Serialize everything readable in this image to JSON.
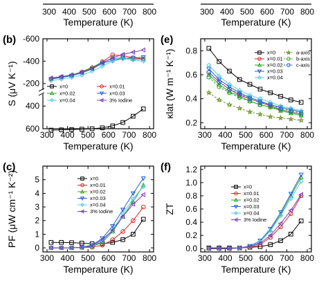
{
  "top_strip": {
    "xticks": [
      "300",
      "400",
      "500",
      "600",
      "700",
      "800",
      "300",
      "400",
      "500",
      "600",
      "700",
      "800"
    ],
    "xlabel_left": "Temperature (K)",
    "xlabel_right": "Temperature (K)"
  },
  "chart_data": [
    {
      "panel": "(b)",
      "type": "line",
      "ylabel": "S (μV K⁻¹)",
      "xlabel": "Temperature (K)",
      "xlim": [
        280,
        820
      ],
      "broken_axis": true,
      "ylim_upper": [
        -600,
        -150
      ],
      "yticks_upper": [
        "-600",
        "-400",
        "-200"
      ],
      "ylim_lower": [
        600,
        300
      ],
      "yticks_lower": [
        "400",
        "600"
      ],
      "xticks": [
        "300",
        "400",
        "500",
        "600",
        "700",
        "800"
      ],
      "legend_position": "middle",
      "series": [
        {
          "name": "x=0",
          "color": "#000000",
          "marker": "square",
          "segment": "lower",
          "x": [
            320,
            370,
            420,
            470,
            520,
            570,
            620,
            670,
            720,
            770
          ],
          "y": [
            612,
            610,
            607,
            604,
            600,
            592,
            575,
            545,
            490,
            425
          ]
        },
        {
          "name": "x=0.01",
          "color": "#d62728",
          "marker": "circle",
          "segment": "upper",
          "x": [
            320,
            370,
            420,
            470,
            520,
            570,
            620,
            670,
            720,
            770
          ],
          "y": [
            -240,
            -255,
            -270,
            -300,
            -340,
            -395,
            -455,
            -450,
            -430,
            -420
          ]
        },
        {
          "name": "x=0.02",
          "color": "#2ca02c",
          "marker": "triangle-up",
          "segment": "upper",
          "x": [
            320,
            370,
            420,
            470,
            520,
            570,
            620,
            670,
            720,
            770
          ],
          "y": [
            -245,
            -260,
            -275,
            -305,
            -345,
            -390,
            -425,
            -430,
            -420,
            -415
          ]
        },
        {
          "name": "x=0.03",
          "color": "#1f5fd6",
          "marker": "triangle-down",
          "segment": "upper",
          "x": [
            320,
            370,
            420,
            470,
            520,
            570,
            620,
            670,
            720,
            770
          ],
          "y": [
            -240,
            -255,
            -270,
            -295,
            -330,
            -380,
            -410,
            -425,
            -430,
            -435
          ]
        },
        {
          "name": "x=0.04",
          "color": "#56c8e0",
          "marker": "diamond",
          "segment": "upper",
          "x": [
            320,
            370,
            420,
            470,
            520,
            570,
            620,
            670,
            720,
            770
          ],
          "y": [
            -225,
            -240,
            -255,
            -275,
            -310,
            -355,
            -400,
            -420,
            -410,
            -400
          ]
        },
        {
          "name": "3% Iodine",
          "color": "#7b3fb3",
          "marker": "triangle-left",
          "segment": "upper",
          "x": [
            320,
            370,
            420,
            470,
            520,
            570,
            620,
            670,
            720,
            770
          ],
          "y": [
            -250,
            -262,
            -278,
            -300,
            -335,
            -385,
            -430,
            -460,
            -480,
            -500
          ]
        }
      ]
    },
    {
      "panel": "(e)",
      "type": "line",
      "ylabel": "κlat (W m⁻¹ K⁻¹)",
      "xlabel": "Temperature (K)",
      "xlim": [
        280,
        820
      ],
      "ylim": [
        0.15,
        0.9
      ],
      "yticks": [
        "0.2",
        "0.4",
        "0.6",
        "0.8"
      ],
      "xticks": [
        "300",
        "400",
        "500",
        "600",
        "700",
        "800"
      ],
      "legend_position": "top-right",
      "series": [
        {
          "name": "x=0",
          "color": "#000000",
          "marker": "square",
          "x": [
            320,
            370,
            420,
            470,
            520,
            570,
            620,
            670,
            720,
            770
          ],
          "y": [
            0.82,
            0.71,
            0.63,
            0.56,
            0.52,
            0.48,
            0.45,
            0.42,
            0.39,
            0.37
          ]
        },
        {
          "name": "x=0.01",
          "color": "#d62728",
          "marker": "circle",
          "x": [
            320,
            370,
            420,
            470,
            520,
            570,
            620,
            670,
            720,
            770
          ],
          "y": [
            0.62,
            0.54,
            0.48,
            0.43,
            0.4,
            0.37,
            0.34,
            0.31,
            0.29,
            0.27
          ]
        },
        {
          "name": "x=0.02",
          "color": "#2ca02c",
          "marker": "triangle-up",
          "x": [
            320,
            370,
            420,
            470,
            520,
            570,
            620,
            670,
            720,
            770
          ],
          "y": [
            0.6,
            0.52,
            0.46,
            0.42,
            0.38,
            0.35,
            0.33,
            0.3,
            0.28,
            0.26
          ]
        },
        {
          "name": "x=0.03",
          "color": "#1f5fd6",
          "marker": "triangle-down",
          "x": [
            320,
            370,
            420,
            470,
            520,
            570,
            620,
            670,
            720,
            770
          ],
          "y": [
            0.65,
            0.56,
            0.5,
            0.45,
            0.41,
            0.38,
            0.35,
            0.33,
            0.31,
            0.29
          ]
        },
        {
          "name": "x=0.04",
          "color": "#56c8e0",
          "marker": "diamond",
          "x": [
            320,
            370,
            420,
            470,
            520,
            570,
            620,
            670,
            720,
            770
          ],
          "y": [
            0.68,
            0.59,
            0.52,
            0.47,
            0.43,
            0.4,
            0.37,
            0.34,
            0.32,
            0.3
          ]
        },
        {
          "name": "a-axis",
          "color": "#6b8e23",
          "marker": "star",
          "dashed": true,
          "x": [
            320,
            370,
            420,
            470,
            520,
            570,
            620,
            670,
            720,
            770
          ],
          "y": [
            0.45,
            0.39,
            0.35,
            0.32,
            0.29,
            0.27,
            0.25,
            0.24,
            0.23,
            0.22
          ]
        },
        {
          "name": "b-axis",
          "color": "#2ca02c",
          "marker": "circle",
          "dashed": true,
          "x": [
            320,
            370,
            420,
            470,
            520,
            570,
            620,
            670,
            720,
            770
          ],
          "y": [
            0.58,
            0.5,
            0.45,
            0.41,
            0.38,
            0.35,
            0.33,
            0.31,
            0.29,
            0.27
          ]
        },
        {
          "name": "c-axis",
          "color": "#1f5fd6",
          "marker": "circle",
          "dashed": true,
          "x": [
            320,
            370,
            420,
            470,
            520,
            570,
            620,
            670,
            720,
            770
          ],
          "y": [
            0.62,
            0.54,
            0.48,
            0.44,
            0.4,
            0.37,
            0.35,
            0.32,
            0.3,
            0.28
          ]
        }
      ]
    },
    {
      "panel": "(c)",
      "type": "line",
      "ylabel": "PF (μW cm⁻¹ K⁻²)",
      "xlabel": "Temperature (K)",
      "xlim": [
        280,
        820
      ],
      "ylim": [
        -0.3,
        6
      ],
      "yticks": [
        "0",
        "1",
        "2",
        "3",
        "4",
        "5"
      ],
      "xticks": [
        "300",
        "400",
        "500",
        "600",
        "700",
        "800"
      ],
      "legend_position": "top-left",
      "series": [
        {
          "name": "x=0",
          "color": "#000000",
          "marker": "square",
          "x": [
            320,
            370,
            420,
            470,
            520,
            570,
            620,
            670,
            720,
            770
          ],
          "y": [
            0.4,
            0.4,
            0.38,
            0.35,
            0.3,
            0.3,
            0.4,
            0.6,
            1.0,
            2.1
          ]
        },
        {
          "name": "x=0.01",
          "color": "#d62728",
          "marker": "circle",
          "x": [
            320,
            370,
            420,
            470,
            520,
            570,
            620,
            670,
            720,
            770
          ],
          "y": [
            0.0,
            0.0,
            0.0,
            0.02,
            0.05,
            0.2,
            0.6,
            1.2,
            2.0,
            3.0
          ]
        },
        {
          "name": "x=0.02",
          "color": "#2ca02c",
          "marker": "triangle-up",
          "x": [
            320,
            370,
            420,
            470,
            520,
            570,
            620,
            670,
            720,
            770
          ],
          "y": [
            0.0,
            0.0,
            0.0,
            0.03,
            0.1,
            0.4,
            1.2,
            2.3,
            3.4,
            4.6
          ]
        },
        {
          "name": "x=0.03",
          "color": "#1f5fd6",
          "marker": "triangle-down",
          "x": [
            320,
            370,
            420,
            470,
            520,
            570,
            620,
            670,
            720,
            770
          ],
          "y": [
            0.0,
            0.0,
            0.0,
            0.05,
            0.2,
            0.7,
            1.6,
            2.8,
            4.0,
            5.1
          ]
        },
        {
          "name": "x=0.04",
          "color": "#56c8e0",
          "marker": "diamond",
          "x": [
            320,
            370,
            420,
            470,
            520,
            570,
            620,
            670,
            720,
            770
          ],
          "y": [
            0.0,
            0.0,
            0.0,
            0.03,
            0.15,
            0.5,
            1.3,
            2.5,
            3.6,
            4.5
          ]
        },
        {
          "name": "3% Iodine",
          "color": "#7b3fb3",
          "marker": "triangle-left",
          "x": [
            320,
            370,
            420,
            470,
            520,
            570,
            620,
            670,
            720,
            770
          ],
          "y": [
            0.0,
            0.0,
            0.0,
            0.04,
            0.15,
            0.6,
            1.3,
            2.3,
            3.2,
            3.9
          ]
        }
      ]
    },
    {
      "panel": "(f)",
      "type": "line",
      "ylabel": "ZT",
      "xlabel": "Temperature (K)",
      "xlim": [
        280,
        820
      ],
      "ylim": [
        -0.05,
        1.25
      ],
      "yticks": [
        "0.0",
        "0.2",
        "0.4",
        "0.6",
        "0.8",
        "1.0",
        "1.2"
      ],
      "xticks": [
        "300",
        "400",
        "500",
        "600",
        "700",
        "800"
      ],
      "legend_position": "top-left",
      "series": [
        {
          "name": "x=0",
          "color": "#000000",
          "marker": "square",
          "x": [
            320,
            370,
            420,
            470,
            520,
            570,
            620,
            670,
            720,
            770
          ],
          "y": [
            0.01,
            0.01,
            0.01,
            0.01,
            0.02,
            0.03,
            0.06,
            0.12,
            0.22,
            0.42
          ]
        },
        {
          "name": "x=0.01",
          "color": "#d62728",
          "marker": "circle",
          "x": [
            320,
            370,
            420,
            470,
            520,
            570,
            620,
            670,
            720,
            770
          ],
          "y": [
            0.0,
            0.0,
            0.0,
            0.01,
            0.02,
            0.06,
            0.17,
            0.33,
            0.53,
            0.8
          ]
        },
        {
          "name": "x=0.02",
          "color": "#2ca02c",
          "marker": "triangle-up",
          "x": [
            320,
            370,
            420,
            470,
            520,
            570,
            620,
            670,
            720,
            770
          ],
          "y": [
            0.0,
            0.0,
            0.0,
            0.01,
            0.03,
            0.1,
            0.28,
            0.52,
            0.8,
            1.08
          ]
        },
        {
          "name": "x=0.03",
          "color": "#1f5fd6",
          "marker": "triangle-down",
          "x": [
            320,
            370,
            420,
            470,
            520,
            570,
            620,
            670,
            720,
            770
          ],
          "y": [
            0.0,
            0.0,
            0.0,
            0.01,
            0.04,
            0.12,
            0.3,
            0.55,
            0.83,
            1.12
          ]
        },
        {
          "name": "x=0.04",
          "color": "#56c8e0",
          "marker": "diamond",
          "x": [
            320,
            370,
            420,
            470,
            520,
            570,
            620,
            670,
            720,
            770
          ],
          "y": [
            0.0,
            0.0,
            0.0,
            0.01,
            0.03,
            0.1,
            0.27,
            0.5,
            0.76,
            1.02
          ]
        },
        {
          "name": "3% Iodine",
          "color": "#7b3fb3",
          "marker": "triangle-left",
          "x": [
            320,
            370,
            420,
            470,
            520,
            570,
            620,
            670,
            720,
            770
          ],
          "y": [
            0.0,
            0.0,
            0.0,
            0.01,
            0.03,
            0.08,
            0.2,
            0.38,
            0.58,
            0.82
          ]
        }
      ]
    }
  ]
}
